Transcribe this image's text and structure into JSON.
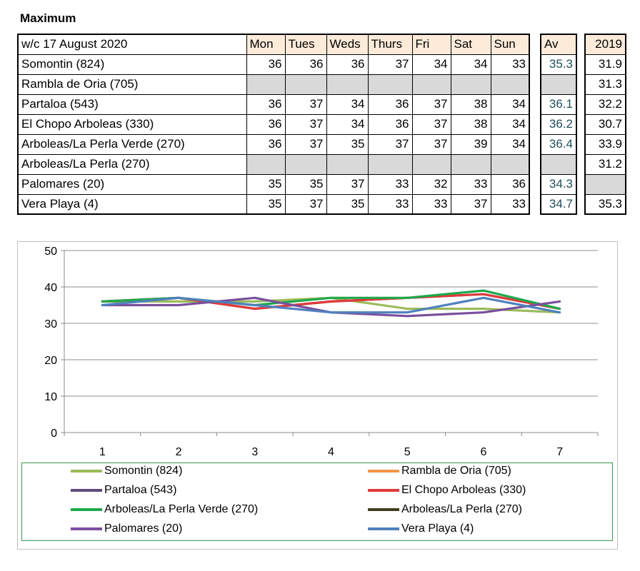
{
  "heading": "Maximum",
  "table": {
    "corner_label": "w/c 17 August  2020",
    "days": [
      "Mon",
      "Tues",
      "Weds",
      "Thurs",
      "Fri",
      "Sat",
      "Sun"
    ],
    "av_label": "Av",
    "year_label": "2019",
    "rows": [
      {
        "station": "Somontin (824)",
        "values": [
          "36",
          "36",
          "36",
          "37",
          "34",
          "34",
          "33"
        ],
        "av": "35.3",
        "y2019": "31.9"
      },
      {
        "station": "Rambla de Oria (705)",
        "values": [
          "",
          "",
          "",
          "",
          "",
          "",
          ""
        ],
        "av": "",
        "y2019": "31.3"
      },
      {
        "station": "Partaloa (543)",
        "values": [
          "36",
          "37",
          "34",
          "36",
          "37",
          "38",
          "34"
        ],
        "av": "36.1",
        "y2019": "32.2"
      },
      {
        "station": "El Chopo  Arboleas (330)",
        "values": [
          "36",
          "37",
          "34",
          "36",
          "37",
          "38",
          "34"
        ],
        "av": "36.2",
        "y2019": "30.7"
      },
      {
        "station": "Arboleas/La Perla Verde (270)",
        "values": [
          "36",
          "37",
          "35",
          "37",
          "37",
          "39",
          "34"
        ],
        "av": "36.4",
        "y2019": "33.9"
      },
      {
        "station": "Arboleas/La Perla (270)",
        "values": [
          "",
          "",
          "",
          "",
          "",
          "",
          ""
        ],
        "av": "",
        "y2019": "31.2"
      },
      {
        "station": "Palomares (20)",
        "values": [
          "35",
          "35",
          "37",
          "33",
          "32",
          "33",
          "36"
        ],
        "av": "34.3",
        "y2019": ""
      },
      {
        "station": "Vera Playa (4)",
        "values": [
          "35",
          "37",
          "35",
          "33",
          "33",
          "37",
          "33"
        ],
        "av": "34.7",
        "y2019": "35.3"
      }
    ]
  },
  "chart_data": {
    "type": "line",
    "title": "",
    "xlabel": "",
    "ylabel": "",
    "x": [
      1,
      2,
      3,
      4,
      5,
      6,
      7
    ],
    "ylim": [
      0,
      50
    ],
    "yticks": [
      0,
      10,
      20,
      30,
      40,
      50
    ],
    "grid": "horizontal",
    "legend": "bottom",
    "series": [
      {
        "name": "Somontin (824)",
        "color": "#9bbb59",
        "values": [
          36,
          36,
          36,
          37,
          34,
          34,
          33
        ]
      },
      {
        "name": "Rambla de Oria (705)",
        "color": "#f79646",
        "values": [
          null,
          null,
          null,
          null,
          null,
          null,
          null
        ]
      },
      {
        "name": "Partaloa (543)",
        "color": "#604a7b",
        "values": [
          36,
          37,
          34,
          36,
          37,
          38,
          34
        ]
      },
      {
        "name": "El Chopo  Arboleas (330)",
        "color": "#e03a3a",
        "values": [
          36,
          37,
          34,
          36,
          37,
          38,
          34
        ]
      },
      {
        "name": "Arboleas/La Perla Verde (270)",
        "color": "#1fa84a",
        "values": [
          36,
          37,
          35,
          37,
          37,
          39,
          34
        ]
      },
      {
        "name": "Arboleas/La Perla (270)",
        "color": "#3f3f1f",
        "values": [
          null,
          null,
          null,
          null,
          null,
          null,
          null
        ]
      },
      {
        "name": "Palomares (20)",
        "color": "#7a4f9e",
        "values": [
          35,
          35,
          37,
          33,
          32,
          33,
          36
        ]
      },
      {
        "name": "Vera Playa (4)",
        "color": "#4f81bd",
        "values": [
          35,
          37,
          35,
          33,
          33,
          37,
          33
        ]
      }
    ]
  }
}
